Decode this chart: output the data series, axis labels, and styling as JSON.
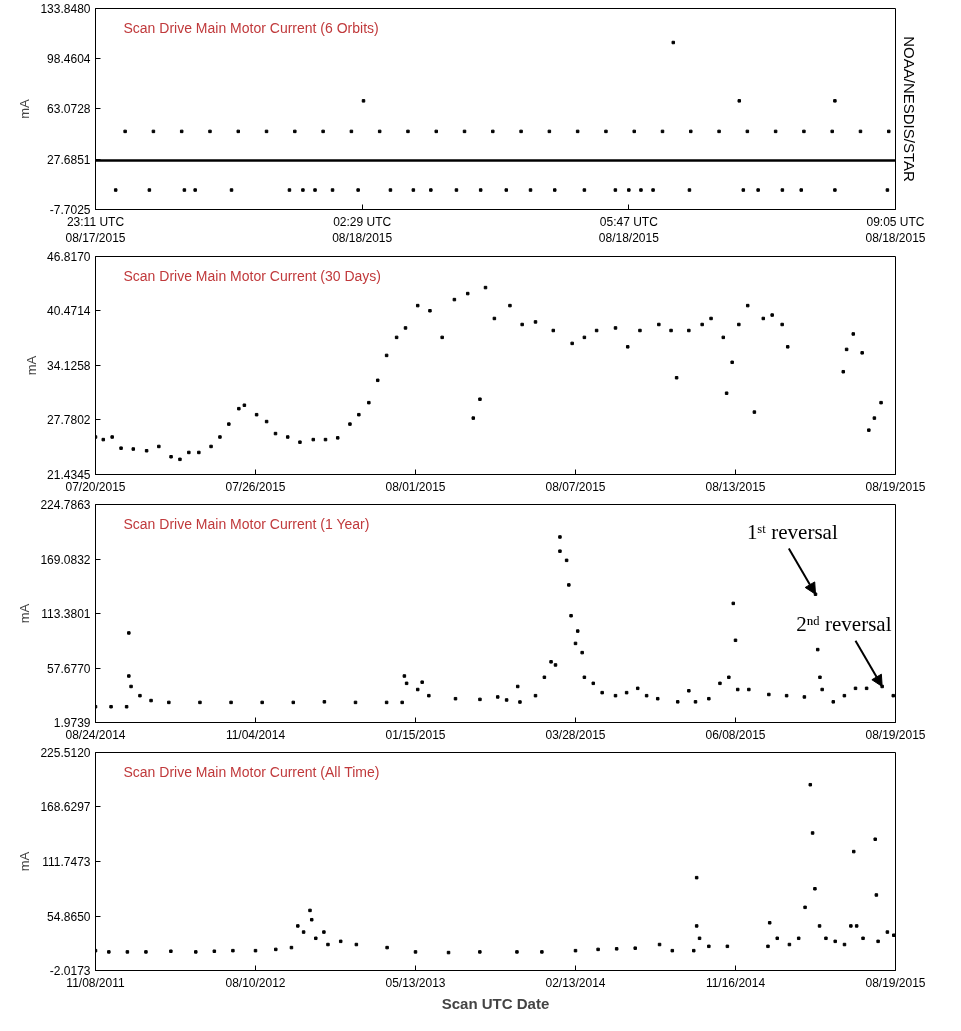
{
  "chart_data": [
    {
      "type": "scatter",
      "title": "Scan Drive Main Motor Current (6 Orbits)",
      "ylabel": "mA",
      "marker": "square",
      "xlim": [
        "2015-08-17T23:11",
        "2015-08-18T09:05"
      ],
      "xticks": [
        {
          "value": "2015-08-17T23:11",
          "label": "23:11 UTC\n08/17/2015"
        },
        {
          "value": "2015-08-18T02:29",
          "label": "02:29 UTC\n08/18/2015"
        },
        {
          "value": "2015-08-18T05:47",
          "label": "05:47 UTC\n08/18/2015"
        },
        {
          "value": "2015-08-18T09:05",
          "label": "09:05 UTC\n08/18/2015"
        }
      ],
      "ylim": [
        -7.7025,
        133.848
      ],
      "yticks": [
        {
          "value": -7.7025,
          "label": "-7.7025"
        },
        {
          "value": 27.6851,
          "label": "27.6851"
        },
        {
          "value": 63.0728,
          "label": "63.0728"
        },
        {
          "value": 98.4604,
          "label": "98.4604"
        },
        {
          "value": 133.848,
          "label": "133.8480"
        }
      ],
      "annotations": [
        "NOAA/NESDIS/STAR"
      ],
      "series": [
        {
          "type": "line",
          "marker": "none",
          "color": "#000000",
          "x": [
            "2015-08-17T23:11",
            "2015-08-18T00:12",
            "2015-08-18T01:12",
            "2015-08-18T02:12",
            "2015-08-18T03:12",
            "2015-08-18T04:12",
            "2015-08-18T05:12",
            "2015-08-18T06:12",
            "2015-08-18T07:12",
            "2015-08-18T08:12",
            "2015-08-18T09:05"
          ],
          "values": [
            26.8,
            26.8,
            26.8,
            26.8,
            26.8,
            26.8,
            26.8,
            26.8,
            26.8,
            26.8,
            26.8
          ]
        },
        {
          "color": "#000000",
          "x": [
            "2015-08-17T23:33",
            "2015-08-17T23:54",
            "2015-08-18T00:15",
            "2015-08-18T00:36",
            "2015-08-18T00:57",
            "2015-08-18T01:18",
            "2015-08-18T01:39",
            "2015-08-18T02:00",
            "2015-08-18T02:21",
            "2015-08-18T02:42",
            "2015-08-18T03:03",
            "2015-08-18T03:24",
            "2015-08-18T03:45",
            "2015-08-18T04:06",
            "2015-08-18T04:27",
            "2015-08-18T04:48",
            "2015-08-18T05:09",
            "2015-08-18T05:30",
            "2015-08-18T05:51",
            "2015-08-18T06:12",
            "2015-08-18T06:33",
            "2015-08-18T06:54",
            "2015-08-18T07:15",
            "2015-08-18T07:36",
            "2015-08-18T07:57",
            "2015-08-18T08:18",
            "2015-08-18T08:39",
            "2015-08-18T09:00"
          ],
          "values": [
            47.3,
            47.3,
            47.3,
            47.3,
            47.3,
            47.3,
            47.3,
            47.3,
            47.3,
            47.3,
            47.3,
            47.3,
            47.3,
            47.3,
            47.3,
            47.3,
            47.3,
            47.3,
            47.3,
            47.3,
            47.3,
            47.3,
            47.3,
            47.3,
            47.3,
            47.3,
            47.3,
            47.3
          ]
        },
        {
          "color": "#000000",
          "x": [
            "2015-08-17T23:26",
            "2015-08-17T23:51",
            "2015-08-18T00:17",
            "2015-08-18T00:25",
            "2015-08-18T00:52",
            "2015-08-18T01:35",
            "2015-08-18T01:45",
            "2015-08-18T01:54",
            "2015-08-18T02:07",
            "2015-08-18T02:26",
            "2015-08-18T02:50",
            "2015-08-18T03:07",
            "2015-08-18T03:20",
            "2015-08-18T03:39",
            "2015-08-18T03:57",
            "2015-08-18T04:16",
            "2015-08-18T04:34",
            "2015-08-18T04:52",
            "2015-08-18T05:14",
            "2015-08-18T05:37",
            "2015-08-18T05:47",
            "2015-08-18T05:56",
            "2015-08-18T06:05",
            "2015-08-18T06:32",
            "2015-08-18T07:12",
            "2015-08-18T07:23",
            "2015-08-18T07:41",
            "2015-08-18T07:55",
            "2015-08-18T08:20",
            "2015-08-18T08:59"
          ],
          "values": [
            6.0,
            6.0,
            6.0,
            6.0,
            6.0,
            6.0,
            6.0,
            6.0,
            6.0,
            6.0,
            6.0,
            6.0,
            6.0,
            6.0,
            6.0,
            6.0,
            6.0,
            6.0,
            6.0,
            6.0,
            6.0,
            6.0,
            6.0,
            6.0,
            6.0,
            6.0,
            6.0,
            6.0,
            6.0,
            6.0
          ]
        },
        {
          "color": "#000000",
          "x": [
            "2015-08-18T02:30",
            "2015-08-18T06:20",
            "2015-08-18T07:09",
            "2015-08-18T08:20"
          ],
          "values": [
            68.8,
            109.9,
            68.8,
            68.8
          ]
        }
      ]
    },
    {
      "type": "scatter",
      "title": "Scan Drive Main Motor Current (30 Days)",
      "ylabel": "mA",
      "marker": "square",
      "xlim": [
        "2015-07-20",
        "2015-08-19"
      ],
      "xticks": [
        {
          "value": "2015-07-20",
          "label": "07/20/2015"
        },
        {
          "value": "2015-07-26",
          "label": "07/26/2015"
        },
        {
          "value": "2015-08-01",
          "label": "08/01/2015"
        },
        {
          "value": "2015-08-07",
          "label": "08/07/2015"
        },
        {
          "value": "2015-08-13",
          "label": "08/13/2015"
        },
        {
          "value": "2015-08-19",
          "label": "08/19/2015"
        }
      ],
      "ylim": [
        21.4345,
        46.817
      ],
      "yticks": [
        {
          "value": 21.4345,
          "label": "21.4345"
        },
        {
          "value": 27.7802,
          "label": "27.7802"
        },
        {
          "value": 34.1258,
          "label": "34.1258"
        },
        {
          "value": 40.4714,
          "label": "40.4714"
        },
        {
          "value": 46.817,
          "label": "46.8170"
        }
      ],
      "series": [
        {
          "color": "#000000",
          "x": [
            "2015-07-20T00:00",
            "2015-07-20T07:00",
            "2015-07-20T15:00",
            "2015-07-20T23:00",
            "2015-07-21T10:00",
            "2015-07-21T22:00",
            "2015-07-22T09:00",
            "2015-07-22T20:00",
            "2015-07-23T04:00",
            "2015-07-23T12:00",
            "2015-07-23T21:00",
            "2015-07-24T08:00",
            "2015-07-24T16:00",
            "2015-07-25T00:00",
            "2015-07-25T09:00",
            "2015-07-25T14:00",
            "2015-07-26T01:00",
            "2015-07-26T10:00",
            "2015-07-26T18:00",
            "2015-07-27T05:00",
            "2015-07-27T16:00",
            "2015-07-28T04:00",
            "2015-07-28T15:00",
            "2015-07-29T02:00",
            "2015-07-29T13:00",
            "2015-07-29T21:00",
            "2015-07-30T06:00",
            "2015-07-30T14:00",
            "2015-07-30T22:00",
            "2015-07-31T07:00",
            "2015-07-31T15:00",
            "2015-08-01T02:00",
            "2015-08-01T13:00",
            "2015-08-02T00:00",
            "2015-08-02T11:00",
            "2015-08-02T23:00",
            "2015-08-03T04:00",
            "2015-08-03T10:00",
            "2015-08-03T15:00",
            "2015-08-03T23:00",
            "2015-08-04T13:00",
            "2015-08-05T00:00",
            "2015-08-05T12:00",
            "2015-08-06T04:00",
            "2015-08-06T21:00",
            "2015-08-07T08:00",
            "2015-08-07T19:00",
            "2015-08-08T12:00",
            "2015-08-08T23:00",
            "2015-08-09T10:00",
            "2015-08-10T03:00",
            "2015-08-10T14:00",
            "2015-08-10T19:00",
            "2015-08-11T06:00",
            "2015-08-11T18:00",
            "2015-08-12T02:00",
            "2015-08-12T13:00",
            "2015-08-12T16:00",
            "2015-08-12T21:00",
            "2015-08-13T03:00",
            "2015-08-13T11:00",
            "2015-08-13T17:00",
            "2015-08-14T01:00",
            "2015-08-14T09:00",
            "2015-08-14T18:00",
            "2015-08-14T23:00",
            "2015-08-17T01:00",
            "2015-08-17T04:00",
            "2015-08-17T10:00",
            "2015-08-17T18:00",
            "2015-08-18T00:00",
            "2015-08-18T05:00",
            "2015-08-18T11:00"
          ],
          "values": [
            25.8,
            25.5,
            25.8,
            24.5,
            24.4,
            24.2,
            24.7,
            23.5,
            23.2,
            24.0,
            24.0,
            24.7,
            25.8,
            27.3,
            29.1,
            29.5,
            28.4,
            27.6,
            26.2,
            25.8,
            25.2,
            25.5,
            25.5,
            25.7,
            27.3,
            28.4,
            29.8,
            32.4,
            35.3,
            37.4,
            38.5,
            41.1,
            40.5,
            37.4,
            41.8,
            42.5,
            28.0,
            30.2,
            43.2,
            39.6,
            41.1,
            38.9,
            39.2,
            38.2,
            36.7,
            37.4,
            38.2,
            38.5,
            36.3,
            38.2,
            38.9,
            38.2,
            32.7,
            38.2,
            38.9,
            39.6,
            37.4,
            30.9,
            34.5,
            38.9,
            41.1,
            28.7,
            39.6,
            40.0,
            38.9,
            36.3,
            33.4,
            36.0,
            37.8,
            35.6,
            26.6,
            28.0,
            29.8
          ]
        }
      ]
    },
    {
      "type": "scatter",
      "title": "Scan Drive Main Motor Current (1 Year)",
      "ylabel": "mA",
      "marker": "square",
      "xlim": [
        "2014-08-24",
        "2015-08-19"
      ],
      "xticks": [
        {
          "value": "2014-08-24",
          "label": "08/24/2014"
        },
        {
          "value": "2014-11-04",
          "label": "11/04/2014"
        },
        {
          "value": "2015-01-15",
          "label": "01/15/2015"
        },
        {
          "value": "2015-03-28",
          "label": "03/28/2015"
        },
        {
          "value": "2015-06-08",
          "label": "06/08/2015"
        },
        {
          "value": "2015-08-19",
          "label": "08/19/2015"
        }
      ],
      "ylim": [
        1.9739,
        224.7863
      ],
      "yticks": [
        {
          "value": 1.9739,
          "label": "1.9739"
        },
        {
          "value": 57.677,
          "label": "57.6770"
        },
        {
          "value": 113.3801,
          "label": "113.3801"
        },
        {
          "value": 169.0832,
          "label": "169.0832"
        },
        {
          "value": 224.7863,
          "label": "224.7863"
        }
      ],
      "annotations": [
        {
          "text": "1ˢᵗ reversal",
          "x": "2015-07-14",
          "y": 133.1
        },
        {
          "text": "2ⁿᵈ reversal",
          "x": "2015-08-13",
          "y": 38.8
        }
      ],
      "series": [
        {
          "color": "#000000",
          "x": [
            "2014-08-24",
            "2014-08-31",
            "2014-09-07",
            "2014-09-08",
            "2014-09-08",
            "2014-09-09",
            "2014-09-13",
            "2014-09-18",
            "2014-09-26",
            "2014-10-10",
            "2014-10-24",
            "2014-11-07",
            "2014-11-21",
            "2014-12-05",
            "2014-12-19",
            "2015-01-02",
            "2015-01-09",
            "2015-01-10",
            "2015-01-11",
            "2015-01-16",
            "2015-01-18",
            "2015-01-21",
            "2015-02-02",
            "2015-02-13",
            "2015-02-21",
            "2015-02-25",
            "2015-03-02",
            "2015-03-03",
            "2015-03-10",
            "2015-03-14",
            "2015-03-17",
            "2015-03-19",
            "2015-03-21",
            "2015-03-21",
            "2015-03-24",
            "2015-03-25",
            "2015-03-26",
            "2015-03-28",
            "2015-03-29",
            "2015-03-31",
            "2015-04-01",
            "2015-04-05",
            "2015-04-09",
            "2015-04-15",
            "2015-04-20",
            "2015-04-25",
            "2015-04-29",
            "2015-05-04",
            "2015-05-13",
            "2015-05-18",
            "2015-05-21",
            "2015-05-27",
            "2015-06-01",
            "2015-06-05",
            "2015-06-07",
            "2015-06-08",
            "2015-06-09",
            "2015-06-14",
            "2015-06-23",
            "2015-07-01",
            "2015-07-09",
            "2015-07-14",
            "2015-07-15",
            "2015-07-16",
            "2015-07-17",
            "2015-07-22",
            "2015-07-27",
            "2015-08-01",
            "2015-08-06",
            "2015-08-13",
            "2015-08-18"
          ],
          "values": [
            18.1,
            18.1,
            18.1,
            93.5,
            49.5,
            38.8,
            29.4,
            24.4,
            22.5,
            22.5,
            22.5,
            22.5,
            22.5,
            23.1,
            22.5,
            22.5,
            22.5,
            49.5,
            42.0,
            35.7,
            43.2,
            29.4,
            26.3,
            25.6,
            28.1,
            25.0,
            38.8,
            22.9,
            29.4,
            48.2,
            64.0,
            60.8,
            177.1,
            191.6,
            167.7,
            142.6,
            111.1,
            82.8,
            95.4,
            73.4,
            48.2,
            42.0,
            32.5,
            29.4,
            32.5,
            36.9,
            29.4,
            26.3,
            23.1,
            34.4,
            23.1,
            26.3,
            42.0,
            48.2,
            123.7,
            86.0,
            35.7,
            35.7,
            30.6,
            29.4,
            28.1,
            133.1,
            76.5,
            48.2,
            35.7,
            23.1,
            29.4,
            36.9,
            36.9,
            38.8,
            29.4
          ]
        }
      ]
    },
    {
      "type": "scatter",
      "title": "Scan Drive Main Motor Current (All Time)",
      "ylabel": "mA",
      "xlabel": "Scan UTC Date",
      "marker": "square",
      "xlim": [
        "2011-11-08",
        "2015-08-19"
      ],
      "xticks": [
        {
          "value": "2011-11-08",
          "label": "11/08/2011"
        },
        {
          "value": "2012-08-10",
          "label": "08/10/2012"
        },
        {
          "value": "2013-05-13",
          "label": "05/13/2013"
        },
        {
          "value": "2014-02-13",
          "label": "02/13/2014"
        },
        {
          "value": "2014-11-16",
          "label": "11/16/2014"
        },
        {
          "value": "2015-08-19",
          "label": "08/19/2015"
        }
      ],
      "ylim": [
        -2.0173,
        225.512
      ],
      "yticks": [
        {
          "value": -2.0173,
          "label": "-2.0173"
        },
        {
          "value": 54.865,
          "label": "54.8650"
        },
        {
          "value": 111.7473,
          "label": "111.7473"
        },
        {
          "value": 168.6297,
          "label": "168.6297"
        },
        {
          "value": 225.512,
          "label": "225.5120"
        }
      ],
      "series": [
        {
          "color": "#000000",
          "x": [
            "2011-11-08",
            "2011-12-01",
            "2012-01-02",
            "2012-02-03",
            "2012-03-17",
            "2012-04-29",
            "2012-05-31",
            "2012-07-02",
            "2012-08-10",
            "2012-09-14",
            "2012-10-11",
            "2012-10-22",
            "2012-11-01",
            "2012-11-12",
            "2012-11-15",
            "2012-11-22",
            "2012-12-06",
            "2012-12-13",
            "2013-01-04",
            "2013-01-31",
            "2013-03-25",
            "2013-05-13",
            "2013-07-09",
            "2013-09-01",
            "2013-11-04",
            "2013-12-17",
            "2014-02-13",
            "2014-03-24",
            "2014-04-25",
            "2014-05-27",
            "2014-07-08",
            "2014-07-30",
            "2014-09-05",
            "2014-09-10",
            "2014-09-10",
            "2014-09-15",
            "2014-10-01",
            "2014-11-02",
            "2015-01-11",
            "2015-01-14",
            "2015-01-27",
            "2015-02-17",
            "2015-03-05",
            "2015-03-16",
            "2015-03-25",
            "2015-03-29",
            "2015-04-02",
            "2015-04-10",
            "2015-04-21",
            "2015-05-07",
            "2015-05-23",
            "2015-06-03",
            "2015-06-08",
            "2015-06-13",
            "2015-06-24",
            "2015-07-15",
            "2015-07-17",
            "2015-07-20",
            "2015-08-05",
            "2015-08-16"
          ],
          "values": [
            18.7,
            17.4,
            17.4,
            17.4,
            18.1,
            17.4,
            18.1,
            18.7,
            18.7,
            20.0,
            21.9,
            44.5,
            38.1,
            60.7,
            51.0,
            31.6,
            38.1,
            25.1,
            28.4,
            25.1,
            21.9,
            17.4,
            16.7,
            17.4,
            17.4,
            17.4,
            18.7,
            20.0,
            20.6,
            21.3,
            25.1,
            18.7,
            18.7,
            94.9,
            44.5,
            31.6,
            23.2,
            23.2,
            23.2,
            47.8,
            31.6,
            25.1,
            31.6,
            63.9,
            191.9,
            141.5,
            83.3,
            44.5,
            31.6,
            28.4,
            25.1,
            44.5,
            122.1,
            44.5,
            31.6,
            135.0,
            76.8,
            28.4,
            38.1,
            34.8
          ]
        }
      ]
    }
  ]
}
